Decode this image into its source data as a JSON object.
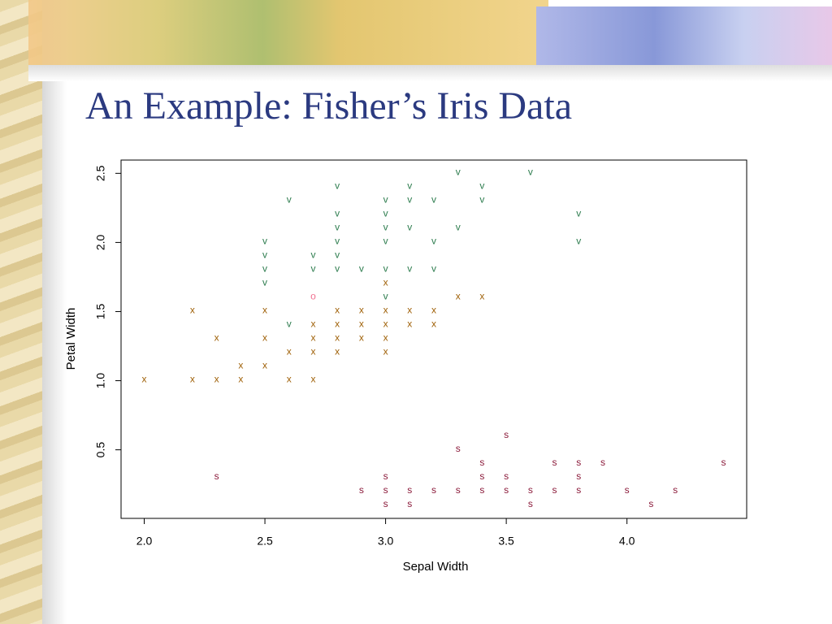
{
  "chart_data": {
    "type": "scatter",
    "title": "An Example: Fisher’s Iris Data",
    "x_label": "Sepal Width",
    "y_label": "Petal Width",
    "xlim": [
      1.904,
      4.496
    ],
    "ylim": [
      0.004,
      2.596
    ],
    "xticks": [
      {
        "value": 2,
        "label": "2.0"
      },
      {
        "value": 2.5,
        "label": "2.5"
      },
      {
        "value": 3,
        "label": "3.0"
      },
      {
        "value": 3.5,
        "label": "3.5"
      },
      {
        "value": 4,
        "label": "4.0"
      }
    ],
    "yticks": [
      0.5,
      {
        "value": 1,
        "label": "1.0"
      },
      1.5,
      {
        "value": 2,
        "label": "2.0"
      },
      2.5
    ],
    "series": [
      {
        "marker": "s",
        "color": "#8b1a3a",
        "x": [
          2.3,
          2.9,
          3.0,
          3.0,
          3.0,
          3.1,
          3.1,
          3.2,
          3.3,
          3.3,
          3.4,
          3.4,
          3.4,
          3.5,
          3.5,
          3.5,
          3.6,
          3.6,
          3.7,
          3.7,
          3.8,
          3.8,
          3.8,
          3.9,
          4.0,
          4.1,
          4.2,
          4.4
        ],
        "values": [
          0.3,
          0.2,
          0.3,
          0.2,
          0.1,
          0.2,
          0.1,
          0.2,
          0.5,
          0.2,
          0.4,
          0.3,
          0.2,
          0.6,
          0.3,
          0.2,
          0.2,
          0.1,
          0.4,
          0.2,
          0.4,
          0.3,
          0.2,
          0.4,
          0.2,
          0.1,
          0.2,
          0.4
        ]
      },
      {
        "marker": "x",
        "color": "#a0620a",
        "x": [
          2.0,
          2.2,
          2.2,
          2.3,
          2.3,
          2.4,
          2.4,
          2.5,
          2.5,
          2.5,
          2.6,
          2.6,
          2.7,
          2.7,
          2.7,
          2.7,
          2.8,
          2.8,
          2.8,
          2.8,
          2.9,
          2.9,
          2.9,
          3.0,
          3.0,
          3.0,
          3.0,
          3.0,
          3.1,
          3.1,
          3.2,
          3.2,
          3.3,
          3.4
        ],
        "values": [
          1.0,
          1.5,
          1.0,
          1.3,
          1.0,
          1.1,
          1.0,
          1.5,
          1.3,
          1.1,
          1.2,
          1.0,
          1.4,
          1.3,
          1.2,
          1.0,
          1.5,
          1.4,
          1.3,
          1.2,
          1.5,
          1.4,
          1.3,
          1.7,
          1.5,
          1.4,
          1.3,
          1.2,
          1.5,
          1.4,
          1.5,
          1.4,
          1.6,
          1.6
        ]
      },
      {
        "marker": "v",
        "color": "#2e7d4f",
        "x": [
          2.5,
          2.5,
          2.5,
          2.5,
          2.6,
          2.6,
          2.7,
          2.7,
          2.8,
          2.8,
          2.8,
          2.8,
          2.8,
          2.8,
          2.9,
          3.0,
          3.0,
          3.0,
          3.0,
          3.0,
          3.0,
          3.1,
          3.1,
          3.1,
          3.1,
          3.2,
          3.2,
          3.2,
          3.3,
          3.3,
          3.4,
          3.4,
          3.6,
          3.8,
          3.8
        ],
        "values": [
          2.0,
          1.9,
          1.8,
          1.7,
          2.3,
          1.4,
          1.9,
          1.8,
          2.4,
          2.2,
          2.1,
          2.0,
          1.9,
          1.8,
          1.8,
          2.3,
          2.2,
          2.1,
          2.0,
          1.8,
          1.6,
          2.4,
          2.3,
          2.1,
          1.8,
          2.3,
          2.0,
          1.8,
          2.5,
          2.1,
          2.4,
          2.3,
          2.5,
          2.2,
          2.0
        ]
      },
      {
        "marker": "o",
        "color": "#f07090",
        "x": [
          2.7
        ],
        "values": [
          1.6
        ]
      }
    ]
  }
}
